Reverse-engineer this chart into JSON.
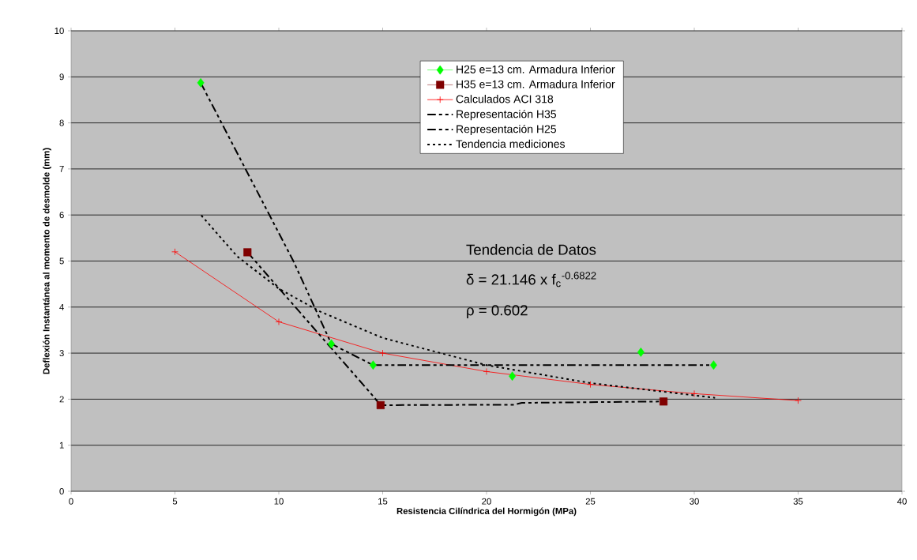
{
  "chart_data": {
    "type": "line",
    "xlabel": "Resistencia Cilíndrica del Hormigón (MPa)",
    "ylabel": "Deflexión Instantánea al momento de desmolde (mm)",
    "xlim": [
      0,
      40
    ],
    "xticks": [
      0,
      5,
      10,
      15,
      20,
      25,
      30,
      35,
      40
    ],
    "ylim": [
      0,
      10
    ],
    "yticks": [
      0,
      1,
      2,
      3,
      4,
      5,
      6,
      7,
      8,
      9,
      10
    ],
    "grid": "y",
    "legend": "top right",
    "annotations": [
      "Tendencia de Datos",
      "δ = 21.146 x f$_{c}$$^{-0.6822}$",
      "ρ = 0.602"
    ],
    "series": [
      {
        "name": "H25 e=13 cm. Armadura Inferior",
        "type": "scatter",
        "marker": "diamond",
        "color": "#00ff00",
        "x": [
          6.24,
          12.53,
          14.54,
          21.24,
          27.43,
          30.93
        ],
        "values": [
          8.87,
          3.2,
          2.74,
          2.5,
          3.02,
          2.74
        ]
      },
      {
        "name": "H35 e=13 cm. Armadura Inferior",
        "type": "scatter",
        "marker": "square",
        "color": "#800000",
        "x": [
          8.49,
          14.9,
          28.52
        ],
        "values": [
          5.19,
          1.87,
          1.95
        ]
      },
      {
        "name": "Calculados ACI 318",
        "marker": "cross",
        "line_style": "solid",
        "color": "#ff0000",
        "x": [
          5,
          10,
          15,
          20,
          25,
          30,
          35
        ],
        "values": [
          5.2,
          3.68,
          3.0,
          2.6,
          2.32,
          2.12,
          1.97
        ]
      },
      {
        "name": "Representación H35",
        "line_style": "dashed",
        "color": "#000000",
        "x": [
          8.49,
          14.4,
          14.9,
          21.3,
          21.7,
          28.52
        ],
        "values": [
          5.19,
          2.14,
          1.87,
          1.88,
          1.92,
          1.95
        ]
      },
      {
        "name": "Representación H25",
        "line_style": "dashed",
        "color": "#000000",
        "x": [
          6.24,
          10.7,
          12.53,
          14.54,
          30.93
        ],
        "values": [
          8.87,
          5.0,
          3.2,
          2.74,
          2.74
        ]
      },
      {
        "name": "Tendencia mediciones",
        "line_style": "dotted",
        "color": "#000000",
        "x": [
          6.27,
          8,
          10,
          12,
          15,
          20,
          25,
          31
        ],
        "values": [
          5.99,
          5.1,
          4.4,
          3.9,
          3.33,
          2.74,
          2.35,
          2.03
        ]
      }
    ]
  }
}
